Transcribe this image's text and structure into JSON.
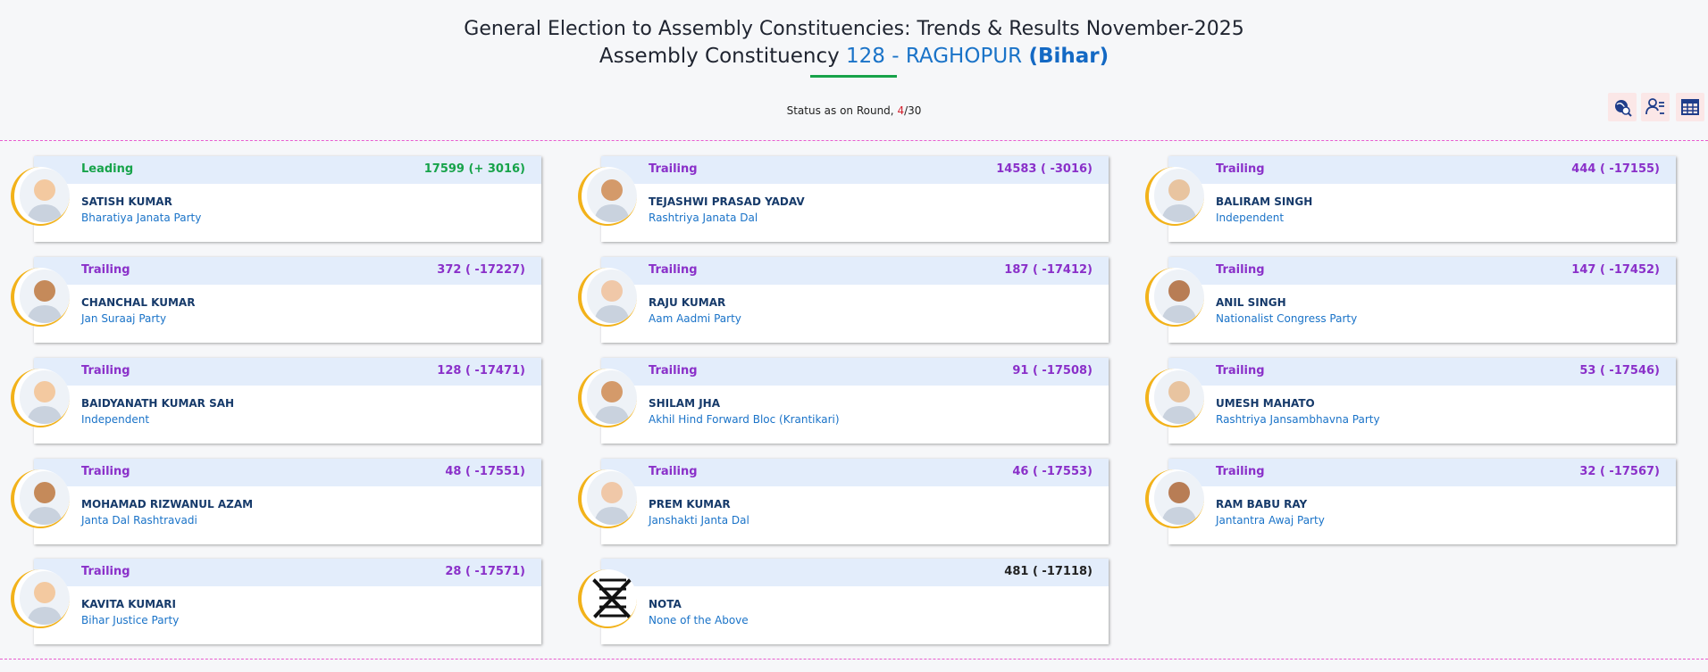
{
  "header": {
    "title_line1": "General Election to Assembly Constituencies: Trends & Results November-2025",
    "title_line2_prefix": "Assembly Constituency",
    "constituency": "128 - RAGHOPUR",
    "state": "(Bihar)"
  },
  "status": {
    "prefix": "Status as on Round,",
    "round": "4",
    "total": "/30"
  },
  "toolbar": {
    "icons": [
      "globe-search-icon",
      "candidate-list-icon",
      "table-grid-icon"
    ]
  },
  "colors": {
    "leading": "#17a34a",
    "trailing": "#8a30c9",
    "party": "#1a73c8",
    "accent_ring": "#f2b21a",
    "band": "#e3edfb"
  },
  "candidates": [
    {
      "status": "Leading",
      "votes": "17599 (+ 3016)",
      "name": "SATISH KUMAR",
      "party": "Bharatiya Janata Party"
    },
    {
      "status": "Trailing",
      "votes": "14583 ( -3016)",
      "name": "TEJASHWI PRASAD YADAV",
      "party": "Rashtriya Janata Dal"
    },
    {
      "status": "Trailing",
      "votes": "444 ( -17155)",
      "name": "BALIRAM SINGH",
      "party": "Independent"
    },
    {
      "status": "Trailing",
      "votes": "372 ( -17227)",
      "name": "CHANCHAL KUMAR",
      "party": "Jan Suraaj Party"
    },
    {
      "status": "Trailing",
      "votes": "187 ( -17412)",
      "name": "RAJU KUMAR",
      "party": "Aam Aadmi Party"
    },
    {
      "status": "Trailing",
      "votes": "147 ( -17452)",
      "name": "ANIL SINGH",
      "party": "Nationalist Congress Party"
    },
    {
      "status": "Trailing",
      "votes": "128 ( -17471)",
      "name": "BAIDYANATH KUMAR SAH",
      "party": "Independent"
    },
    {
      "status": "Trailing",
      "votes": "91 ( -17508)",
      "name": "SHILAM JHA",
      "party": "Akhil Hind Forward Bloc (Krantikari)"
    },
    {
      "status": "Trailing",
      "votes": "53 ( -17546)",
      "name": "UMESH MAHATO",
      "party": "Rashtriya Jansambhavna Party"
    },
    {
      "status": "Trailing",
      "votes": "48 ( -17551)",
      "name": "MOHAMAD RIZWANUL AZAM",
      "party": "Janta Dal Rashtravadi"
    },
    {
      "status": "Trailing",
      "votes": "46 ( -17553)",
      "name": "PREM KUMAR",
      "party": "Janshakti Janta Dal"
    },
    {
      "status": "Trailing",
      "votes": "32 ( -17567)",
      "name": "RAM BABU RAY",
      "party": "Jantantra Awaj Party"
    },
    {
      "status": "Trailing",
      "votes": "28 ( -17571)",
      "name": "KAVITA KUMARI",
      "party": "Bihar Justice Party"
    },
    {
      "status": "",
      "votes": "481 ( -17118)",
      "name": "NOTA",
      "party": "None of the Above"
    }
  ]
}
